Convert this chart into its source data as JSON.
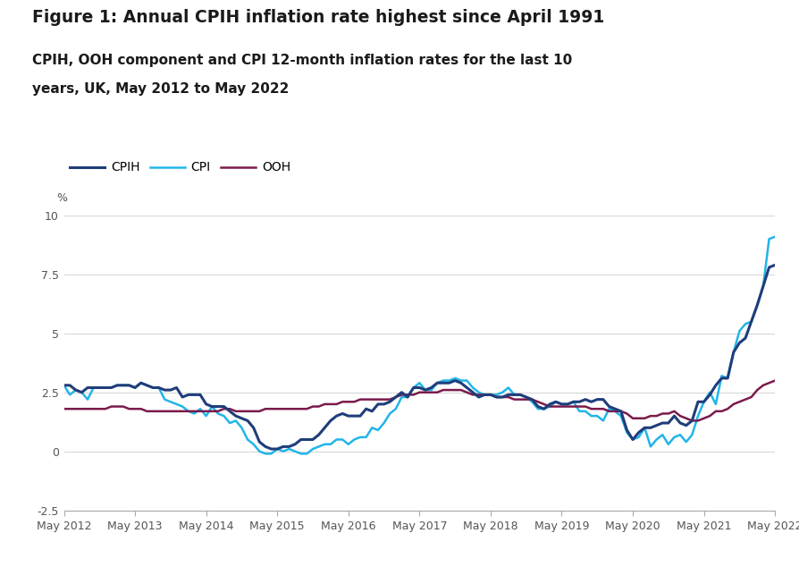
{
  "title": "Figure 1: Annual CPIH inflation rate highest since April 1991",
  "subtitle_line1": "CPIH, OOH component and CPI 12-month inflation rates for the last 10",
  "subtitle_line2": "years, UK, May 2012 to May 2022",
  "ylabel": "%",
  "ylim": [
    -2.5,
    10
  ],
  "yticks": [
    -2.5,
    0,
    2.5,
    5,
    7.5,
    10
  ],
  "background_color": "#ffffff",
  "cpih_color": "#1f3d7a",
  "cpi_color": "#22b5e8",
  "ooh_color": "#7b1a4b",
  "cpih_linewidth": 2.2,
  "cpi_linewidth": 1.8,
  "ooh_linewidth": 1.8,
  "cpih": [
    2.8,
    2.8,
    2.6,
    2.5,
    2.7,
    2.7,
    2.7,
    2.7,
    2.7,
    2.8,
    2.8,
    2.8,
    2.7,
    2.9,
    2.8,
    2.7,
    2.7,
    2.6,
    2.6,
    2.7,
    2.3,
    2.4,
    2.4,
    2.4,
    2.0,
    1.9,
    1.9,
    1.9,
    1.7,
    1.5,
    1.4,
    1.3,
    1.0,
    0.4,
    0.2,
    0.1,
    0.1,
    0.2,
    0.2,
    0.3,
    0.5,
    0.5,
    0.5,
    0.7,
    1.0,
    1.3,
    1.5,
    1.6,
    1.5,
    1.5,
    1.5,
    1.8,
    1.7,
    2.0,
    2.0,
    2.1,
    2.3,
    2.5,
    2.3,
    2.7,
    2.7,
    2.6,
    2.7,
    2.9,
    2.9,
    2.9,
    3.0,
    2.9,
    2.7,
    2.5,
    2.3,
    2.4,
    2.4,
    2.3,
    2.3,
    2.4,
    2.4,
    2.4,
    2.3,
    2.2,
    1.9,
    1.8,
    2.0,
    2.1,
    2.0,
    2.0,
    2.1,
    2.1,
    2.2,
    2.1,
    2.2,
    2.2,
    1.9,
    1.8,
    1.7,
    0.9,
    0.5,
    0.8,
    1.0,
    1.0,
    1.1,
    1.2,
    1.2,
    1.5,
    1.2,
    1.1,
    1.3,
    2.1,
    2.1,
    2.4,
    2.8,
    3.1,
    3.1,
    4.2,
    4.6,
    4.8,
    5.5,
    6.2,
    7.0,
    7.8,
    7.9
  ],
  "cpi": [
    2.8,
    2.4,
    2.6,
    2.5,
    2.2,
    2.7,
    2.7,
    2.7,
    2.7,
    2.8,
    2.8,
    2.8,
    2.7,
    2.9,
    2.8,
    2.7,
    2.7,
    2.2,
    2.1,
    2.0,
    1.9,
    1.7,
    1.6,
    1.8,
    1.5,
    1.9,
    1.6,
    1.5,
    1.2,
    1.3,
    1.0,
    0.5,
    0.3,
    0.0,
    -0.1,
    -0.1,
    0.1,
    0.0,
    0.1,
    0.0,
    -0.1,
    -0.1,
    0.1,
    0.2,
    0.3,
    0.3,
    0.5,
    0.5,
    0.3,
    0.5,
    0.6,
    0.6,
    1.0,
    0.9,
    1.2,
    1.6,
    1.8,
    2.3,
    2.3,
    2.7,
    2.9,
    2.6,
    2.6,
    2.9,
    3.0,
    3.0,
    3.1,
    3.0,
    3.0,
    2.7,
    2.5,
    2.4,
    2.4,
    2.4,
    2.5,
    2.7,
    2.4,
    2.4,
    2.3,
    2.1,
    1.8,
    1.8,
    1.9,
    2.1,
    2.0,
    2.0,
    2.1,
    1.7,
    1.7,
    1.5,
    1.5,
    1.3,
    1.8,
    1.7,
    1.5,
    0.8,
    0.5,
    0.6,
    1.0,
    0.2,
    0.5,
    0.7,
    0.3,
    0.6,
    0.7,
    0.4,
    0.7,
    1.5,
    2.1,
    2.5,
    2.0,
    3.2,
    3.1,
    4.2,
    5.1,
    5.4,
    5.5,
    6.2,
    7.0,
    9.0,
    9.1
  ],
  "ooh": [
    1.8,
    1.8,
    1.8,
    1.8,
    1.8,
    1.8,
    1.8,
    1.8,
    1.9,
    1.9,
    1.9,
    1.8,
    1.8,
    1.8,
    1.7,
    1.7,
    1.7,
    1.7,
    1.7,
    1.7,
    1.7,
    1.7,
    1.7,
    1.7,
    1.7,
    1.7,
    1.7,
    1.8,
    1.8,
    1.7,
    1.7,
    1.7,
    1.7,
    1.7,
    1.8,
    1.8,
    1.8,
    1.8,
    1.8,
    1.8,
    1.8,
    1.8,
    1.9,
    1.9,
    2.0,
    2.0,
    2.0,
    2.1,
    2.1,
    2.1,
    2.2,
    2.2,
    2.2,
    2.2,
    2.2,
    2.2,
    2.3,
    2.4,
    2.4,
    2.4,
    2.5,
    2.5,
    2.5,
    2.5,
    2.6,
    2.6,
    2.6,
    2.6,
    2.5,
    2.4,
    2.4,
    2.4,
    2.4,
    2.3,
    2.3,
    2.3,
    2.2,
    2.2,
    2.2,
    2.2,
    2.1,
    2.0,
    1.9,
    1.9,
    1.9,
    1.9,
    1.9,
    1.9,
    1.9,
    1.8,
    1.8,
    1.8,
    1.7,
    1.7,
    1.7,
    1.6,
    1.4,
    1.4,
    1.4,
    1.5,
    1.5,
    1.6,
    1.6,
    1.7,
    1.5,
    1.4,
    1.3,
    1.3,
    1.4,
    1.5,
    1.7,
    1.7,
    1.8,
    2.0,
    2.1,
    2.2,
    2.3,
    2.6,
    2.8,
    2.9,
    3.0
  ],
  "xtick_positions": [
    0,
    12,
    24,
    36,
    48,
    60,
    72,
    84,
    96,
    108,
    120
  ],
  "xtick_labels": [
    "May 2012",
    "May 2013",
    "May 2014",
    "May 2015",
    "May 2016",
    "May 2017",
    "May 2018",
    "May 2019",
    "May 2020",
    "May 2021",
    "May 2022"
  ]
}
